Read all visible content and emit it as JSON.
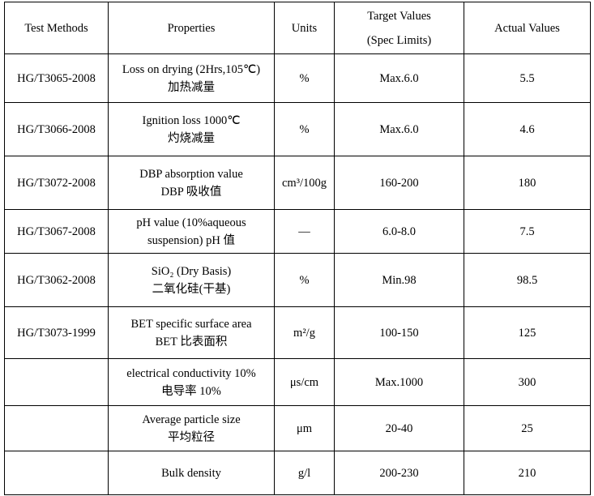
{
  "table": {
    "header": [
      [
        "Test Methods"
      ],
      [
        "Properties"
      ],
      [
        "Units"
      ],
      [
        "Target Values",
        "(Spec Limits)"
      ],
      [
        "Actual Values"
      ]
    ],
    "rows": [
      [
        [
          "HG/T3065-2008"
        ],
        [
          "Loss on drying (2Hrs,105℃)",
          "加热减量"
        ],
        [
          "%"
        ],
        [
          "Max.6.0"
        ],
        [
          "5.5"
        ]
      ],
      [
        [
          "HG/T3066-2008"
        ],
        [
          "Ignition loss 1000℃",
          "灼烧减量"
        ],
        [
          "%"
        ],
        [
          "Max.6.0"
        ],
        [
          "4.6"
        ]
      ],
      [
        [
          "HG/T3072-2008"
        ],
        [
          "DBP absorption value",
          "DBP 吸收值"
        ],
        [
          "cm³/100g"
        ],
        [
          "160-200"
        ],
        [
          "180"
        ]
      ],
      [
        [
          "HG/T3067-2008"
        ],
        [
          "pH value (10%aqueous",
          "suspension)  pH 值"
        ],
        [
          "—"
        ],
        [
          "6.0-8.0"
        ],
        [
          "7.5"
        ]
      ],
      [
        [
          "HG/T3062-2008"
        ],
        [
          "SiO₂ (Dry Basis)",
          "二氧化硅(干基)"
        ],
        [
          "%"
        ],
        [
          "Min.98"
        ],
        [
          "98.5"
        ]
      ],
      [
        [
          "HG/T3073-1999"
        ],
        [
          "BET specific surface area",
          "BET 比表面积"
        ],
        [
          "m²/g"
        ],
        [
          "100-150"
        ],
        [
          "125"
        ]
      ],
      [
        [],
        [
          "electrical conductivity 10%",
          "电导率 10%"
        ],
        [
          "μs/cm"
        ],
        [
          "Max.1000"
        ],
        [
          "300"
        ]
      ],
      [
        [],
        [
          "Average particle size",
          "平均粒径"
        ],
        [
          "μm"
        ],
        [
          "20-40"
        ],
        [
          "25"
        ]
      ],
      [
        [],
        [
          "Bulk density"
        ],
        [
          "g/l"
        ],
        [
          "200-230"
        ],
        [
          "210"
        ]
      ]
    ]
  }
}
